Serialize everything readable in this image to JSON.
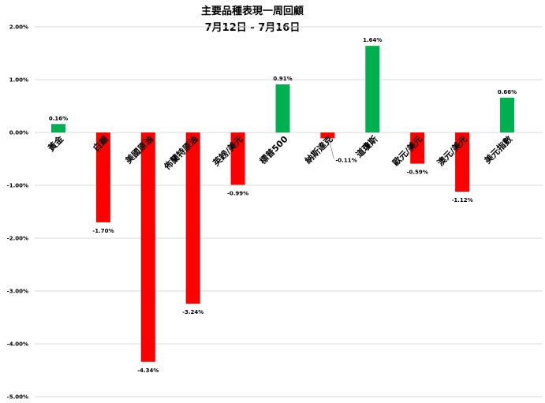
{
  "chart_data": {
    "type": "bar",
    "title": "主要品種表現一周回顧",
    "subtitle": "7月12日 - 7月16日",
    "categories": [
      "黃金",
      "白銀",
      "美國原油",
      "佈蘭特原油",
      "英鎊/美元",
      "標普500",
      "納斯達克",
      "道瓊斯",
      "歐元/美元",
      "澳元/美元",
      "美元指數"
    ],
    "values": [
      0.16,
      -1.7,
      -4.34,
      -3.24,
      -0.99,
      0.91,
      -0.11,
      1.64,
      -0.59,
      -1.12,
      0.66
    ],
    "data_labels": [
      "0.16%",
      "-1.70%",
      "-4.34%",
      "-3.24%",
      "-0.99%",
      "0.91%",
      "-0.11%",
      "1.64%",
      "-0.59%",
      "-1.12%",
      "0.66%"
    ],
    "y_ticks": [
      2,
      1,
      0,
      -1,
      -2,
      -3,
      -4,
      -5
    ],
    "y_tick_labels": [
      "2.00%",
      "1.00%",
      "0.00%",
      "-1.00%",
      "-2.00%",
      "-3.00%",
      "-4.00%",
      "-5.00%"
    ],
    "ylim": [
      -5,
      2
    ],
    "grid": true,
    "colors": {
      "positive": "#00b050",
      "negative": "#ff0000",
      "grid": "#d9d9d9"
    }
  }
}
